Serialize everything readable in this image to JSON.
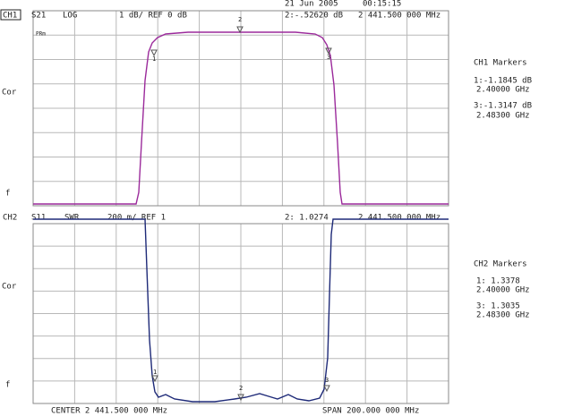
{
  "header": {
    "date": "21 Jun 2005",
    "time": "00:15:15"
  },
  "ch1": {
    "label": "CH1",
    "param": "S21",
    "format": "LOG",
    "scale": "1 dB/ REF 0 dB",
    "marker_readout": "2:-.52620 dB",
    "marker_freq": "2 441.500 000 MHz",
    "annotation": "PRm",
    "side_labels": [
      "Cor",
      "f"
    ],
    "marker_labels": [
      "1",
      "2",
      "3"
    ],
    "markers_title": "CH1 Markers",
    "markers": [
      {
        "value": "1:-1.1845 dB",
        "freq": "2.40000 GHz"
      },
      {
        "value": "3:-1.3147 dB",
        "freq": "2.48300 GHz"
      }
    ]
  },
  "ch2": {
    "label": "CH2",
    "param": "S11",
    "format": "SWR",
    "scale": "200 m/ REF 1",
    "marker_readout": "2: 1.0274",
    "marker_freq": "2 441.500 000 MHz",
    "side_labels": [
      "Cor",
      "f"
    ],
    "marker_labels": [
      "1",
      "2",
      "3"
    ],
    "markers_title": "CH2 Markers",
    "markers": [
      {
        "value": "1: 1.3378",
        "freq": "2.40000 GHz"
      },
      {
        "value": "3: 1.3035",
        "freq": "2.48300 GHz"
      }
    ]
  },
  "footer": {
    "center": "CENTER 2 441.500 000 MHz",
    "span": "SPAN 200.000 000 MHz"
  }
}
